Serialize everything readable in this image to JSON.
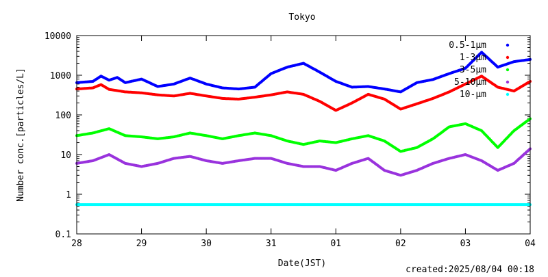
{
  "chart_data": {
    "type": "scatter",
    "title": "Tokyo",
    "xlabel": "Date(JST)",
    "ylabel": "Number conc.[particles/L]",
    "yscale": "log",
    "ylim": [
      0.1,
      10000
    ],
    "yticks": [
      0.1,
      1,
      10,
      100,
      1000,
      10000
    ],
    "ytick_labels": [
      "0.1",
      "1",
      "10",
      "100",
      "1000",
      "10000"
    ],
    "xlim": [
      "2025-07-28 00:00",
      "2025-08-04 00:00"
    ],
    "xticks": [
      "2025-07-28",
      "2025-07-29",
      "2025-07-30",
      "2025-07-31",
      "2025-08-01",
      "2025-08-02",
      "2025-08-03",
      "2025-08-04"
    ],
    "xtick_labels": [
      "28",
      "29",
      "30",
      "31",
      "01",
      "02",
      "03",
      "04"
    ],
    "grid": false,
    "legend_position": "top-right",
    "series": [
      {
        "name": "0.5-1μm",
        "color": "#0000ff",
        "points": [
          [
            "2025-07-28 00:00",
            650
          ],
          [
            "2025-07-28 06:00",
            700
          ],
          [
            "2025-07-28 09:00",
            950
          ],
          [
            "2025-07-28 12:00",
            750
          ],
          [
            "2025-07-28 15:00",
            880
          ],
          [
            "2025-07-28 18:00",
            650
          ],
          [
            "2025-07-29 00:00",
            800
          ],
          [
            "2025-07-29 06:00",
            520
          ],
          [
            "2025-07-29 12:00",
            600
          ],
          [
            "2025-07-29 18:00",
            850
          ],
          [
            "2025-07-30 00:00",
            600
          ],
          [
            "2025-07-30 06:00",
            480
          ],
          [
            "2025-07-30 12:00",
            450
          ],
          [
            "2025-07-30 18:00",
            500
          ],
          [
            "2025-07-31 00:00",
            1100
          ],
          [
            "2025-07-31 06:00",
            1600
          ],
          [
            "2025-07-31 12:00",
            2000
          ],
          [
            "2025-07-31 18:00",
            1200
          ],
          [
            "2025-08-01 00:00",
            700
          ],
          [
            "2025-08-01 06:00",
            500
          ],
          [
            "2025-08-01 12:00",
            520
          ],
          [
            "2025-08-01 18:00",
            450
          ],
          [
            "2025-08-02 00:00",
            380
          ],
          [
            "2025-08-02 06:00",
            650
          ],
          [
            "2025-08-02 12:00",
            780
          ],
          [
            "2025-08-02 18:00",
            1100
          ],
          [
            "2025-08-03 00:00",
            1500
          ],
          [
            "2025-08-03 06:00",
            3800
          ],
          [
            "2025-08-03 12:00",
            1600
          ],
          [
            "2025-08-03 18:00",
            2200
          ],
          [
            "2025-08-04 00:00",
            2500
          ]
        ]
      },
      {
        "name": "1-3μm",
        "color": "#ff0000",
        "points": [
          [
            "2025-07-28 00:00",
            450
          ],
          [
            "2025-07-28 06:00",
            480
          ],
          [
            "2025-07-28 09:00",
            580
          ],
          [
            "2025-07-28 12:00",
            440
          ],
          [
            "2025-07-28 18:00",
            380
          ],
          [
            "2025-07-29 00:00",
            360
          ],
          [
            "2025-07-29 06:00",
            320
          ],
          [
            "2025-07-29 12:00",
            300
          ],
          [
            "2025-07-29 18:00",
            350
          ],
          [
            "2025-07-30 00:00",
            300
          ],
          [
            "2025-07-30 06:00",
            260
          ],
          [
            "2025-07-30 12:00",
            250
          ],
          [
            "2025-07-30 18:00",
            280
          ],
          [
            "2025-07-31 00:00",
            320
          ],
          [
            "2025-07-31 06:00",
            380
          ],
          [
            "2025-07-31 12:00",
            330
          ],
          [
            "2025-07-31 18:00",
            220
          ],
          [
            "2025-08-01 00:00",
            130
          ],
          [
            "2025-08-01 06:00",
            200
          ],
          [
            "2025-08-01 12:00",
            330
          ],
          [
            "2025-08-01 18:00",
            250
          ],
          [
            "2025-08-02 00:00",
            140
          ],
          [
            "2025-08-02 06:00",
            190
          ],
          [
            "2025-08-02 12:00",
            260
          ],
          [
            "2025-08-02 18:00",
            380
          ],
          [
            "2025-08-03 00:00",
            600
          ],
          [
            "2025-08-03 06:00",
            950
          ],
          [
            "2025-08-03 12:00",
            500
          ],
          [
            "2025-08-03 18:00",
            400
          ],
          [
            "2025-08-04 00:00",
            700
          ]
        ]
      },
      {
        "name": "3-5μm",
        "color": "#00ff00",
        "points": [
          [
            "2025-07-28 00:00",
            30
          ],
          [
            "2025-07-28 06:00",
            35
          ],
          [
            "2025-07-28 12:00",
            45
          ],
          [
            "2025-07-28 18:00",
            30
          ],
          [
            "2025-07-29 00:00",
            28
          ],
          [
            "2025-07-29 06:00",
            25
          ],
          [
            "2025-07-29 12:00",
            28
          ],
          [
            "2025-07-29 18:00",
            35
          ],
          [
            "2025-07-30 00:00",
            30
          ],
          [
            "2025-07-30 06:00",
            25
          ],
          [
            "2025-07-30 12:00",
            30
          ],
          [
            "2025-07-30 18:00",
            35
          ],
          [
            "2025-07-31 00:00",
            30
          ],
          [
            "2025-07-31 06:00",
            22
          ],
          [
            "2025-07-31 12:00",
            18
          ],
          [
            "2025-07-31 18:00",
            22
          ],
          [
            "2025-08-01 00:00",
            20
          ],
          [
            "2025-08-01 06:00",
            25
          ],
          [
            "2025-08-01 12:00",
            30
          ],
          [
            "2025-08-01 18:00",
            22
          ],
          [
            "2025-08-02 00:00",
            12
          ],
          [
            "2025-08-02 06:00",
            15
          ],
          [
            "2025-08-02 12:00",
            25
          ],
          [
            "2025-08-02 18:00",
            50
          ],
          [
            "2025-08-03 00:00",
            60
          ],
          [
            "2025-08-03 06:00",
            40
          ],
          [
            "2025-08-03 12:00",
            15
          ],
          [
            "2025-08-03 18:00",
            40
          ],
          [
            "2025-08-04 00:00",
            80
          ]
        ]
      },
      {
        "name": "5-10μm",
        "color": "#9933dd",
        "points": [
          [
            "2025-07-28 00:00",
            6
          ],
          [
            "2025-07-28 06:00",
            7
          ],
          [
            "2025-07-28 12:00",
            10
          ],
          [
            "2025-07-28 18:00",
            6
          ],
          [
            "2025-07-29 00:00",
            5
          ],
          [
            "2025-07-29 06:00",
            6
          ],
          [
            "2025-07-29 12:00",
            8
          ],
          [
            "2025-07-29 18:00",
            9
          ],
          [
            "2025-07-30 00:00",
            7
          ],
          [
            "2025-07-30 06:00",
            6
          ],
          [
            "2025-07-30 12:00",
            7
          ],
          [
            "2025-07-30 18:00",
            8
          ],
          [
            "2025-07-31 00:00",
            8
          ],
          [
            "2025-07-31 06:00",
            6
          ],
          [
            "2025-07-31 12:00",
            5
          ],
          [
            "2025-07-31 18:00",
            5
          ],
          [
            "2025-08-01 00:00",
            4
          ],
          [
            "2025-08-01 06:00",
            6
          ],
          [
            "2025-08-01 12:00",
            8
          ],
          [
            "2025-08-01 18:00",
            4
          ],
          [
            "2025-08-02 00:00",
            3
          ],
          [
            "2025-08-02 06:00",
            4
          ],
          [
            "2025-08-02 12:00",
            6
          ],
          [
            "2025-08-02 18:00",
            8
          ],
          [
            "2025-08-03 00:00",
            10
          ],
          [
            "2025-08-03 06:00",
            7
          ],
          [
            "2025-08-03 12:00",
            4
          ],
          [
            "2025-08-03 18:00",
            6
          ],
          [
            "2025-08-04 00:00",
            14
          ]
        ]
      },
      {
        "name": "10-μm",
        "color": "#00ffff",
        "points": [
          [
            "2025-07-28 00:00",
            0.55
          ],
          [
            "2025-07-29 00:00",
            0.55
          ],
          [
            "2025-07-30 00:00",
            0.55
          ],
          [
            "2025-07-31 00:00",
            0.55
          ],
          [
            "2025-08-01 00:00",
            0.55
          ],
          [
            "2025-08-02 00:00",
            0.55
          ],
          [
            "2025-08-03 00:00",
            0.55
          ],
          [
            "2025-08-04 00:00",
            0.55
          ]
        ]
      }
    ]
  },
  "footer": {
    "created": "created:2025/08/04 00:18"
  }
}
